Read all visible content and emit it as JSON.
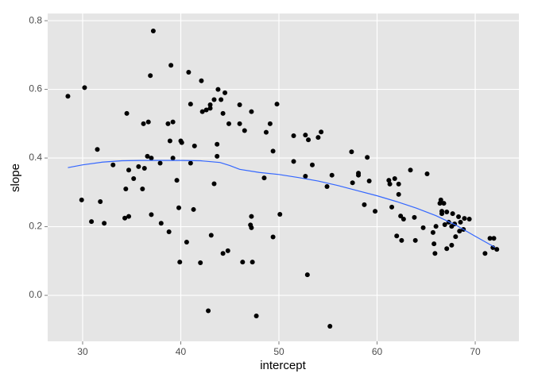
{
  "chart_data": {
    "type": "scatter",
    "x_label": "intercept",
    "y_label": "slope",
    "xlim": [
      26.44,
      74.45
    ],
    "ylim": [
      -0.134,
      0.821
    ],
    "xticks": [
      30,
      40,
      50,
      60,
      70
    ],
    "yticks": [
      {
        "value": 0,
        "label": "0.0"
      },
      0.2,
      0.4,
      0.6,
      0.8
    ],
    "grid": true,
    "panel_color": "#e5e5e5",
    "points": {
      "color": "#000000",
      "x": [
        28.5,
        30.2,
        29.9,
        30.9,
        31.5,
        31.8,
        32.2,
        33.1,
        34.5,
        34.4,
        34.7,
        34.3,
        34.7,
        35.2,
        35.7,
        36.1,
        36.2,
        36.3,
        36.7,
        36.9,
        36.6,
        37.0,
        37.2,
        37.0,
        37.9,
        38.0,
        38.7,
        39.0,
        39.2,
        38.9,
        39.2,
        39.6,
        39.8,
        38.8,
        39.9,
        40.0,
        40.1,
        40.6,
        40.8,
        41.0,
        41.0,
        41.4,
        41.3,
        42.1,
        42.2,
        42.0,
        42.6,
        43.0,
        43.0,
        43.4,
        43.1,
        43.4,
        42.8,
        43.8,
        43.7,
        43.7,
        44.1,
        44.3,
        44.5,
        44.3,
        44.8,
        44.9,
        46.0,
        46.0,
        46.5,
        46.3,
        47.2,
        47.1,
        47.2,
        47.2,
        47.3,
        47.7,
        48.5,
        48.7,
        49.1,
        49.4,
        49.4,
        49.8,
        50.1,
        51.5,
        51.5,
        52.7,
        52.7,
        53.0,
        52.9,
        53.4,
        54.0,
        54.3,
        54.9,
        55.4,
        55.2,
        57.4,
        57.5,
        58.1,
        58.1,
        58.7,
        59.0,
        59.2,
        59.8,
        61.2,
        61.3,
        61.5,
        61.8,
        62.2,
        62.2,
        62.0,
        62.4,
        62.7,
        62.5,
        63.4,
        63.8,
        63.9,
        64.7,
        65.1,
        65.8,
        65.7,
        65.9,
        66.0,
        66.4,
        66.5,
        66.6,
        66.6,
        66.8,
        66.9,
        67.1,
        67.1,
        67.3,
        67.6,
        67.6,
        67.7,
        67.9,
        68.0,
        68.3,
        68.4,
        68.5,
        68.8,
        68.9,
        69.4,
        71.0,
        71.5,
        71.9,
        71.8,
        72.2
      ],
      "y": [
        0.58,
        0.605,
        0.278,
        0.215,
        0.425,
        0.273,
        0.21,
        0.38,
        0.53,
        0.31,
        0.365,
        0.225,
        0.23,
        0.34,
        0.375,
        0.31,
        0.5,
        0.37,
        0.505,
        0.64,
        0.405,
        0.4,
        0.77,
        0.235,
        0.385,
        0.21,
        0.5,
        0.67,
        0.505,
        0.45,
        0.4,
        0.335,
        0.255,
        0.185,
        0.097,
        0.45,
        0.445,
        0.155,
        0.65,
        0.557,
        0.385,
        0.435,
        0.25,
        0.625,
        0.535,
        0.095,
        0.54,
        0.555,
        0.545,
        0.57,
        0.175,
        0.325,
        -0.045,
        0.6,
        0.405,
        0.44,
        0.57,
        0.53,
        0.59,
        0.122,
        0.13,
        0.5,
        0.555,
        0.5,
        0.48,
        0.097,
        0.23,
        0.205,
        0.197,
        0.535,
        0.097,
        -0.06,
        0.342,
        0.475,
        0.5,
        0.42,
        0.17,
        0.557,
        0.236,
        0.465,
        0.39,
        0.347,
        0.467,
        0.453,
        0.06,
        0.38,
        0.46,
        0.476,
        0.317,
        0.35,
        -0.09,
        0.418,
        0.328,
        0.356,
        0.35,
        0.264,
        0.402,
        0.333,
        0.245,
        0.335,
        0.324,
        0.257,
        0.34,
        0.324,
        0.294,
        0.173,
        0.231,
        0.222,
        0.16,
        0.365,
        0.227,
        0.16,
        0.197,
        0.354,
        0.15,
        0.183,
        0.122,
        0.201,
        0.268,
        0.278,
        0.245,
        0.238,
        0.268,
        0.206,
        0.243,
        0.136,
        0.213,
        0.201,
        0.146,
        0.238,
        0.208,
        0.171,
        0.229,
        0.187,
        0.213,
        0.192,
        0.224,
        0.222,
        0.122,
        0.166,
        0.166,
        0.139,
        0.134
      ]
    },
    "smooth": {
      "color": "#3366ff",
      "x": [
        28.5,
        30,
        32,
        34,
        36,
        38,
        40,
        42,
        44,
        45,
        46,
        48,
        50,
        52,
        54,
        56,
        58,
        60,
        62,
        64,
        66,
        68,
        70,
        72
      ],
      "y": [
        0.372,
        0.38,
        0.388,
        0.392,
        0.393,
        0.393,
        0.393,
        0.392,
        0.387,
        0.378,
        0.367,
        0.358,
        0.352,
        0.343,
        0.333,
        0.32,
        0.305,
        0.29,
        0.273,
        0.254,
        0.232,
        0.205,
        0.172,
        0.14
      ]
    }
  }
}
